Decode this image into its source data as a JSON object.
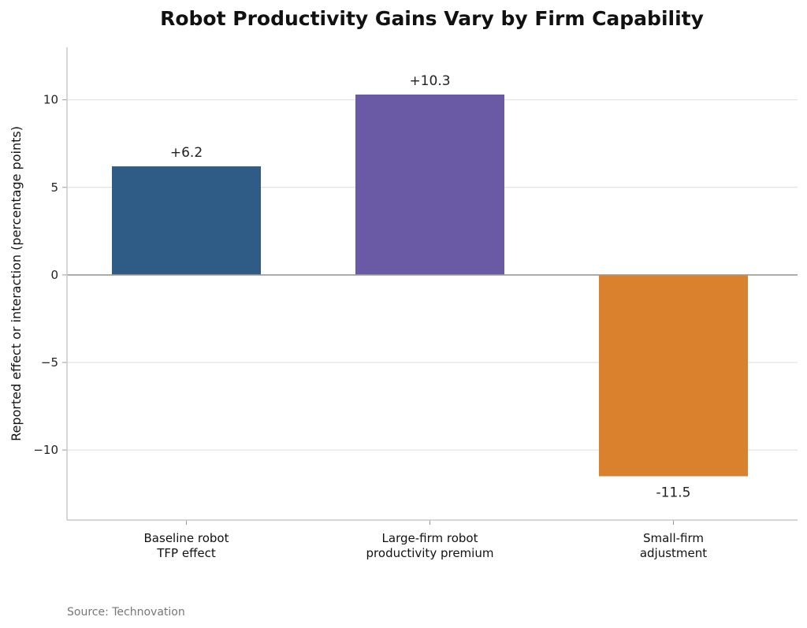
{
  "chart_data": {
    "type": "bar",
    "title": "Robot Productivity Gains Vary by Firm Capability",
    "xlabel": "",
    "ylabel": "Reported effect or interaction (percentage points)",
    "categories": [
      [
        "Baseline robot",
        "TFP effect"
      ],
      [
        "Large-firm robot",
        "productivity premium"
      ],
      [
        "Small-firm",
        "adjustment"
      ]
    ],
    "values": [
      6.2,
      10.3,
      -11.5
    ],
    "data_labels": [
      "+6.2",
      "+10.3",
      "-11.5"
    ],
    "colors": [
      "#2e5c87",
      "#6a5aa6",
      "#d9812c"
    ],
    "ylim": [
      -14,
      13
    ],
    "yticks": [
      10,
      5,
      0,
      -5,
      -10
    ],
    "ytick_labels": [
      "10",
      "5",
      "0",
      "−5",
      "−10"
    ],
    "grid": "horizontal",
    "source": "Source: Technovation"
  }
}
